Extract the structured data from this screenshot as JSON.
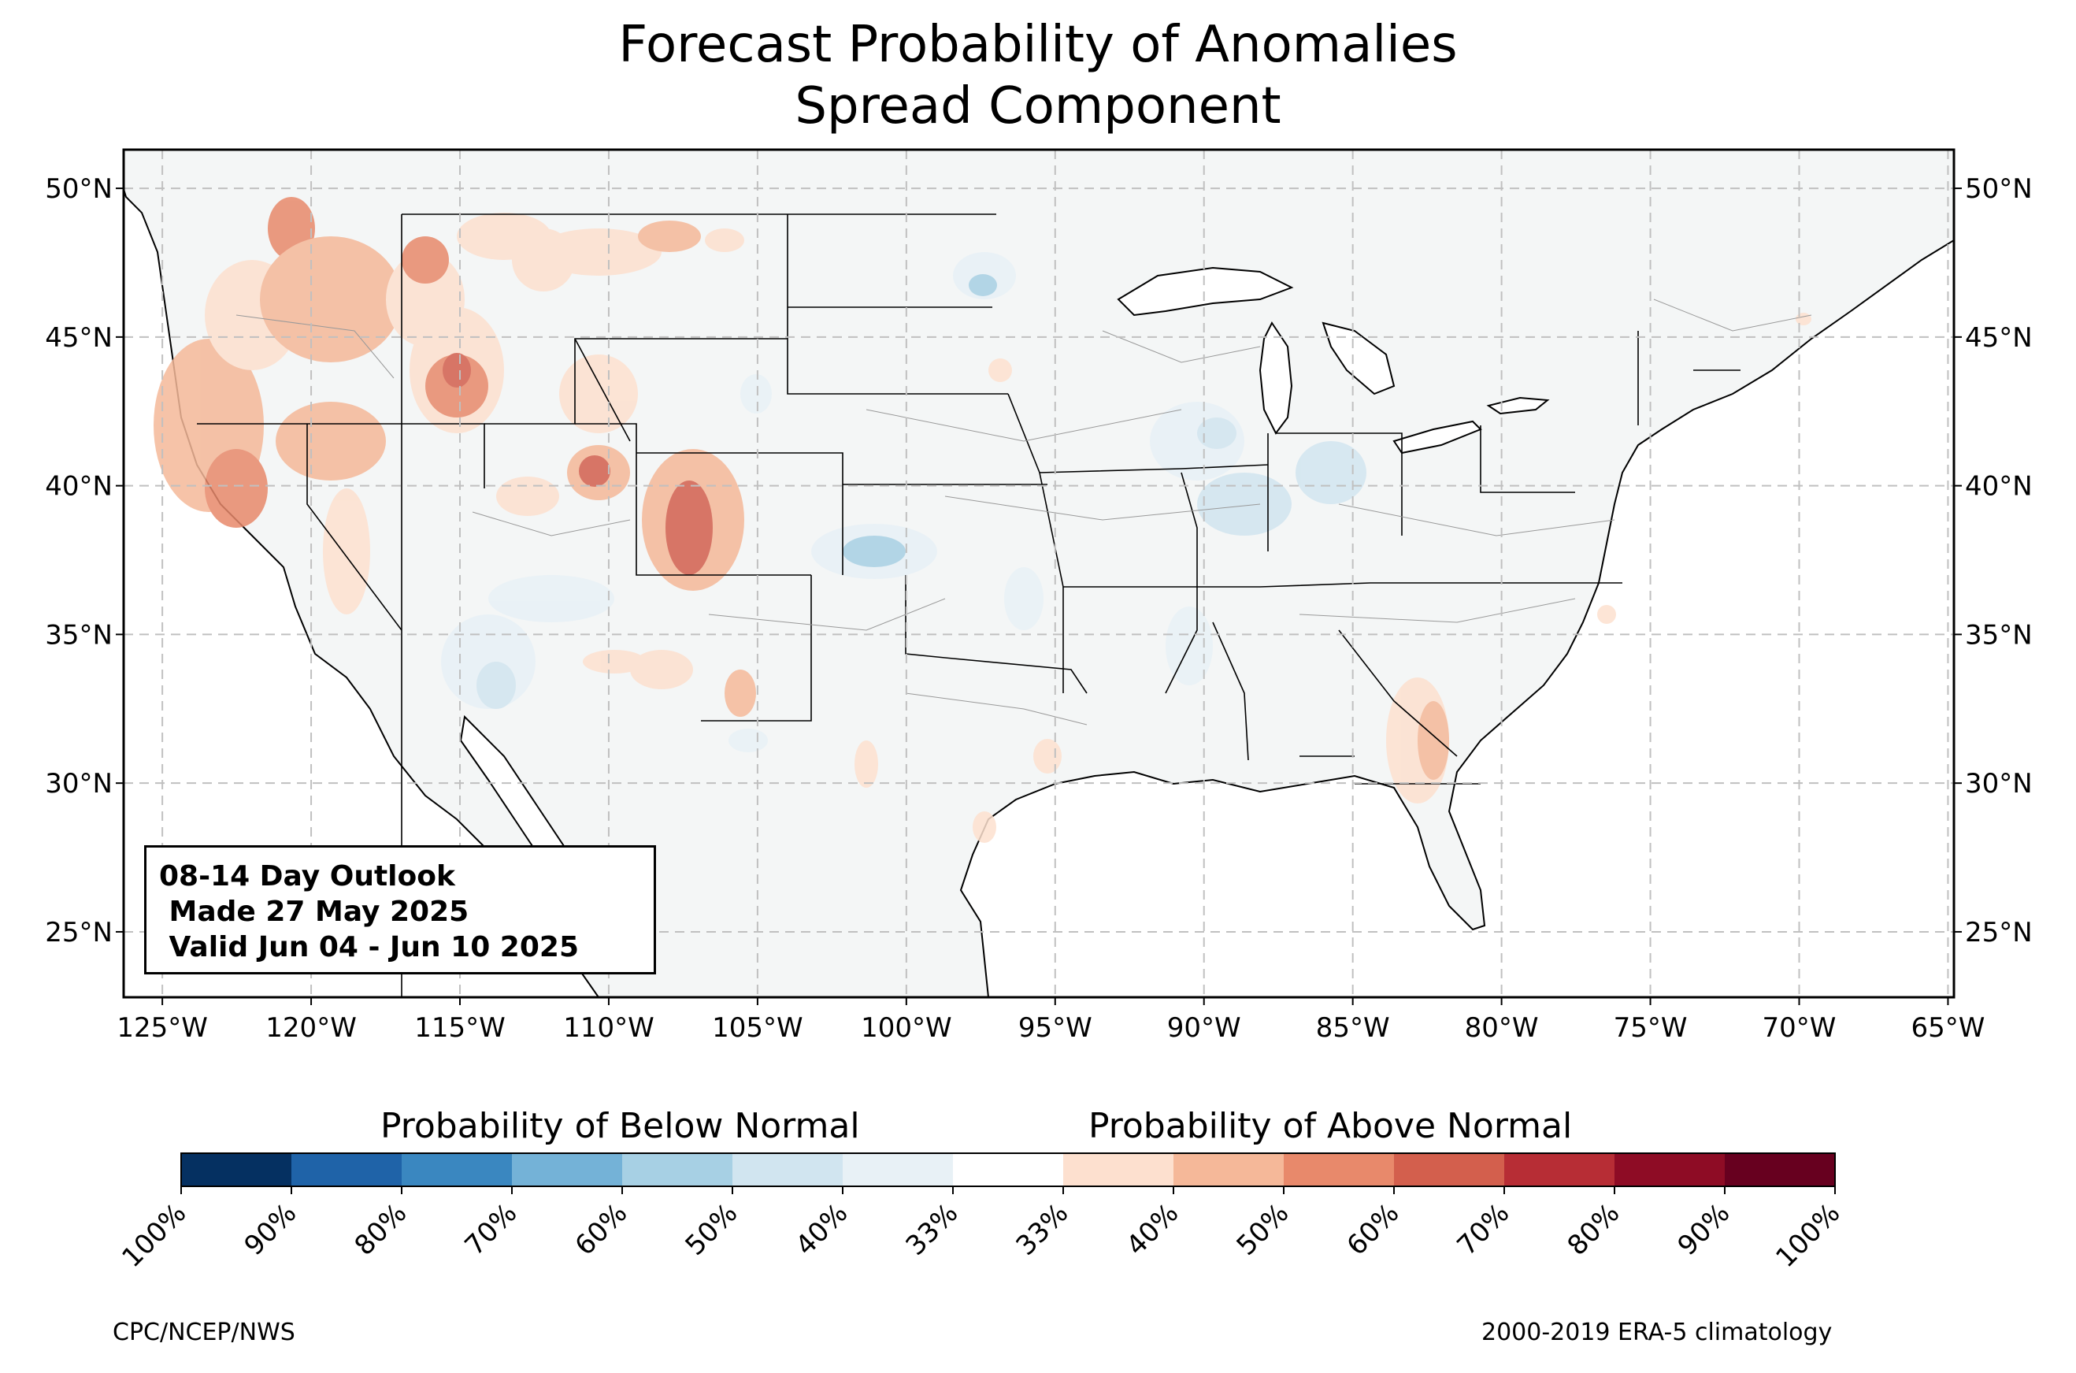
{
  "title": {
    "line1": "Forecast Probability of Anomalies",
    "line2": "Spread Component"
  },
  "map": {
    "lat_range": [
      22.8,
      51.3
    ],
    "lon_range": [
      -126.3,
      -64.8
    ],
    "lat_ticks": [
      "25°N",
      "30°N",
      "35°N",
      "40°N",
      "45°N",
      "50°N"
    ],
    "lat_tick_values": [
      25,
      30,
      35,
      40,
      45,
      50
    ],
    "lon_ticks": [
      "125°W",
      "120°W",
      "115°W",
      "110°W",
      "105°W",
      "100°W",
      "95°W",
      "90°W",
      "85°W",
      "80°W",
      "75°W",
      "70°W",
      "65°W"
    ],
    "lon_tick_values": [
      -125,
      -120,
      -115,
      -110,
      -105,
      -100,
      -95,
      -90,
      -85,
      -80,
      -75,
      -70,
      -65
    ],
    "land_color": "#f4f6f6",
    "gridline_style": "dashed"
  },
  "outlook_box": {
    "line1": "08-14 Day Outlook",
    "line2": " Made 27 May 2025",
    "line3": " Valid Jun 04 - Jun 10 2025"
  },
  "colorbar": {
    "below_label": "Probability of Below Normal",
    "above_label": "Probability of Above Normal",
    "tick_labels": [
      "100%",
      "90%",
      "80%",
      "70%",
      "60%",
      "50%",
      "40%",
      "33%",
      "33%",
      "40%",
      "50%",
      "60%",
      "70%",
      "80%",
      "90%",
      "100%"
    ],
    "colors": [
      "#053061",
      "#1f63a8",
      "#3a87c0",
      "#74b2d7",
      "#a7d0e4",
      "#d1e5f0",
      "#e8f1f6",
      "#ffffff",
      "#fde0cf",
      "#f5b899",
      "#e8896b",
      "#d35f4d",
      "#b72d35",
      "#8e0c25",
      "#67001f"
    ]
  },
  "credits": {
    "left": "CPC/NCEP/NWS",
    "right": "2000-2019 ERA-5 climatology"
  }
}
